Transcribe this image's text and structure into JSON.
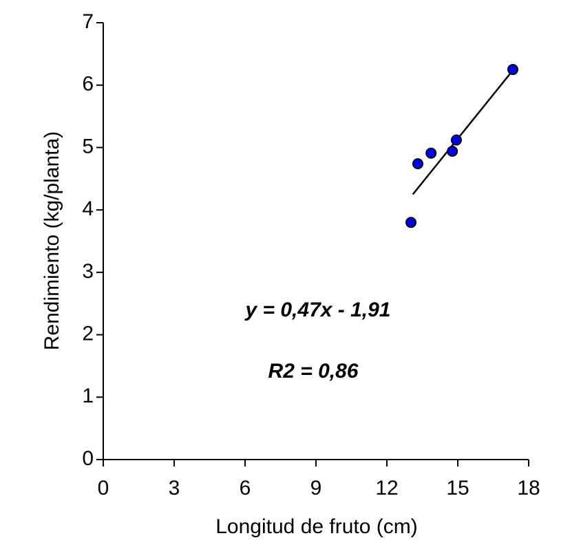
{
  "chart_data": {
    "type": "scatter",
    "x_label": "Longitud de fruto (cm)",
    "y_label": "Rendimiento (kg/planta)",
    "annotations": [
      "y = 0,47x - 1,91",
      "R2 = 0,86"
    ],
    "x": [
      13.02,
      13.31,
      13.87,
      14.77,
      14.94,
      17.33
    ],
    "values": [
      3.8,
      4.74,
      4.91,
      4.94,
      5.12,
      6.25
    ],
    "color": "#0000ff",
    "fit_line": {
      "x": [
        13.1,
        17.25
      ],
      "values": [
        4.25,
        6.2
      ],
      "color": "#000000"
    },
    "xlim": [
      0,
      18
    ],
    "xticks": [
      0,
      3,
      6,
      9,
      12,
      15,
      18
    ],
    "ylim": [
      0,
      7
    ],
    "yticks": [
      0,
      1,
      2,
      3,
      4,
      5,
      6,
      7
    ],
    "grid": false
  }
}
